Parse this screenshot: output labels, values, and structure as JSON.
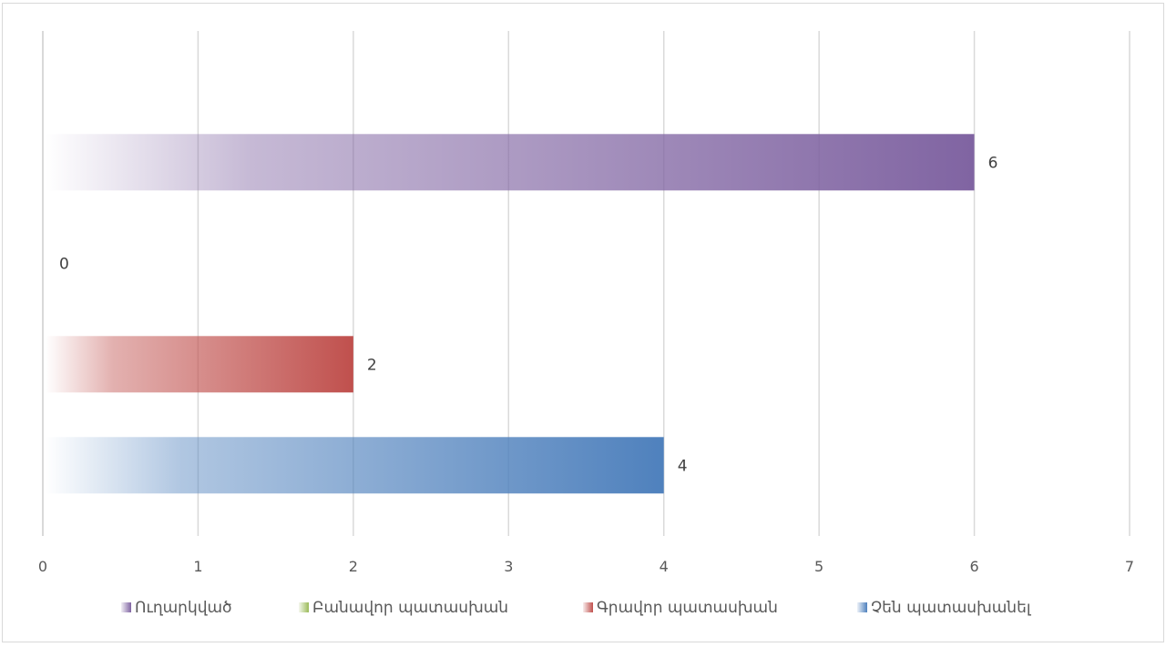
{
  "chart_data": {
    "type": "bar",
    "orientation": "horizontal",
    "title": "",
    "xlabel": "",
    "ylabel": "",
    "xlim": [
      0,
      7
    ],
    "x_ticks": [
      "0",
      "1",
      "2",
      "3",
      "4",
      "5",
      "6",
      "7"
    ],
    "grid": true,
    "legend_position": "bottom",
    "series": [
      {
        "name": "Ուղարկված",
        "value": 6,
        "label": "6",
        "color": "#8064a2"
      },
      {
        "name": "Բանավոր պատասխան",
        "value": 0,
        "label": "0",
        "color": "#9bbb59"
      },
      {
        "name": "Գրավոր պատասխան",
        "value": 2,
        "label": "2",
        "color": "#c0504d"
      },
      {
        "name": "Չեն պատասխանել",
        "value": 4,
        "label": "4",
        "color": "#4f81bd"
      }
    ]
  }
}
